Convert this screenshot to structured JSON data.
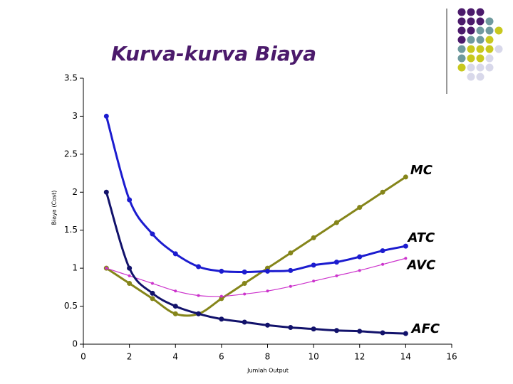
{
  "chart_data": {
    "type": "line",
    "title": "Kurva-kurva Biaya",
    "x_label": "Jumlah Output",
    "y_label": "Biaya (Cost)",
    "x": [
      1,
      2,
      3,
      4,
      5,
      6,
      7,
      8,
      9,
      10,
      11,
      12,
      13,
      14
    ],
    "xlim": [
      0,
      16
    ],
    "xticks": [
      0,
      2,
      4,
      6,
      8,
      10,
      12,
      14,
      16
    ],
    "ylim": [
      0,
      3.5
    ],
    "yticks": [
      0,
      0.5,
      1,
      1.5,
      2,
      2.5,
      3,
      3.5
    ],
    "series": [
      {
        "name": "MC",
        "color": "#85851a",
        "values": [
          1,
          0.8,
          0.6,
          0.4,
          0.4,
          0.6,
          0.8,
          1.0,
          1.2,
          1.4,
          1.6,
          1.8,
          2.0,
          2.2
        ]
      },
      {
        "name": "ATC",
        "color": "#1c1ccf",
        "values": [
          3.0,
          1.9,
          1.45,
          1.19,
          1.02,
          0.96,
          0.95,
          0.96,
          0.97,
          1.04,
          1.08,
          1.15,
          1.23,
          1.29
        ]
      },
      {
        "name": "AVC",
        "color": "#cc33cc",
        "values": [
          1.0,
          0.9,
          0.8,
          0.7,
          0.64,
          0.63,
          0.66,
          0.7,
          0.76,
          0.83,
          0.9,
          0.97,
          1.05,
          1.13
        ]
      },
      {
        "name": "AFC",
        "color": "#12126b",
        "values": [
          2.0,
          1.0,
          0.67,
          0.5,
          0.4,
          0.33,
          0.29,
          0.25,
          0.22,
          0.2,
          0.18,
          0.17,
          0.15,
          0.14
        ]
      }
    ]
  }
}
